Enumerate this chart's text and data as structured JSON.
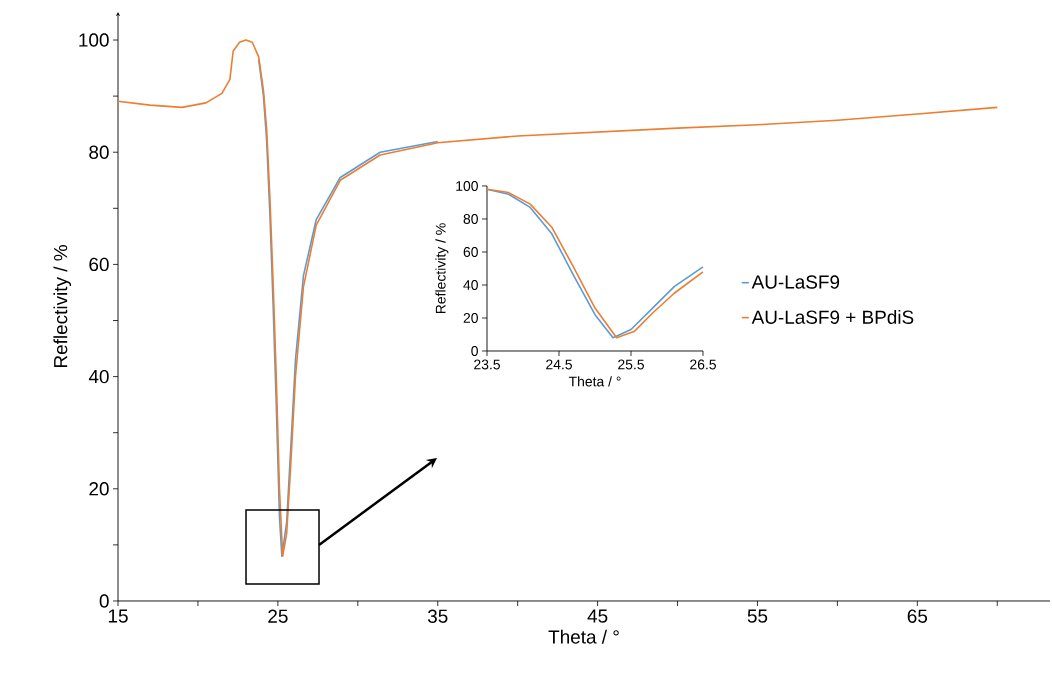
{
  "chart_data": [
    {
      "type": "line",
      "xlabel": "Theta / °",
      "ylabel": "Reflectivity / %",
      "xlim": [
        15,
        73.3
      ],
      "ylim": [
        0,
        105
      ],
      "xticks": [
        15,
        {
          "value": 20,
          "label": null
        },
        25,
        {
          "value": 30,
          "label": null
        },
        35,
        {
          "value": 40,
          "label": null
        },
        45,
        {
          "value": 50,
          "label": null
        },
        55,
        {
          "value": 60,
          "label": null
        },
        65,
        {
          "value": 70,
          "label": null
        }
      ],
      "yticks": [
        0,
        {
          "value": 10,
          "label": null
        },
        20,
        {
          "value": 30,
          "label": null
        },
        40,
        {
          "value": 50,
          "label": null
        },
        60,
        {
          "value": 70,
          "label": null
        },
        80,
        {
          "value": 90,
          "label": null
        },
        100
      ],
      "legend": "right",
      "grid": false,
      "series": [
        {
          "name": "AU-LaSF9",
          "color": "#5b9bd5",
          "x": [
            23.8,
            24.1,
            24.3,
            24.5,
            24.7,
            24.9,
            25.1,
            25.25,
            25.55,
            25.8,
            26.1,
            26.6,
            27.4,
            28.9,
            31.4,
            35
          ],
          "values": [
            96.5,
            90,
            82,
            69,
            53,
            35,
            15,
            8,
            14,
            27,
            43,
            58,
            68,
            75.5,
            80,
            81.9
          ]
        },
        {
          "name": "AU-LaSF9 + BPdiS",
          "color": "#ed7d31",
          "x": [
            15,
            17,
            19,
            20.5,
            21.5,
            22,
            22.2,
            22.6,
            23,
            23.4,
            23.8,
            24.1,
            24.3,
            24.5,
            24.7,
            24.9,
            25.1,
            25.3,
            25.55,
            25.8,
            26.1,
            26.6,
            27.4,
            28.9,
            31.4,
            35,
            40,
            45,
            50,
            55,
            60,
            65,
            70
          ],
          "values": [
            89.1,
            88.4,
            88.0,
            88.8,
            90.5,
            93,
            98,
            99.6,
            100,
            99.6,
            97,
            91,
            84,
            72,
            57,
            40,
            20,
            8,
            12,
            24,
            40,
            56,
            67,
            75,
            79.5,
            81.7,
            82.9,
            83.6,
            84.3,
            84.9,
            85.7,
            86.8,
            88
          ]
        }
      ]
    },
    {
      "type": "line",
      "xlabel": "Theta / °",
      "ylabel": "Reflectivity / %",
      "xlim": [
        23.5,
        26.5
      ],
      "ylim": [
        0,
        100
      ],
      "xticks": [
        23.5,
        24.5,
        25.5,
        26.5
      ],
      "yticks": [
        0,
        20,
        40,
        60,
        80,
        100
      ],
      "legend": false,
      "grid": false,
      "series": [
        {
          "color": "#5b9bd5",
          "x": [
            23.5,
            23.8,
            24.1,
            24.4,
            24.7,
            25.0,
            25.25,
            25.5,
            25.8,
            26.1,
            26.5
          ],
          "values": [
            98,
            95,
            87,
            71,
            46,
            22,
            8,
            13,
            26,
            39,
            51
          ]
        },
        {
          "color": "#ed7d31",
          "x": [
            23.5,
            23.8,
            24.1,
            24.4,
            24.7,
            25.0,
            25.3,
            25.55,
            25.8,
            26.1,
            26.5
          ],
          "values": [
            98,
            96,
            89,
            75,
            51,
            26,
            8,
            12,
            23,
            35,
            48
          ]
        }
      ]
    }
  ]
}
